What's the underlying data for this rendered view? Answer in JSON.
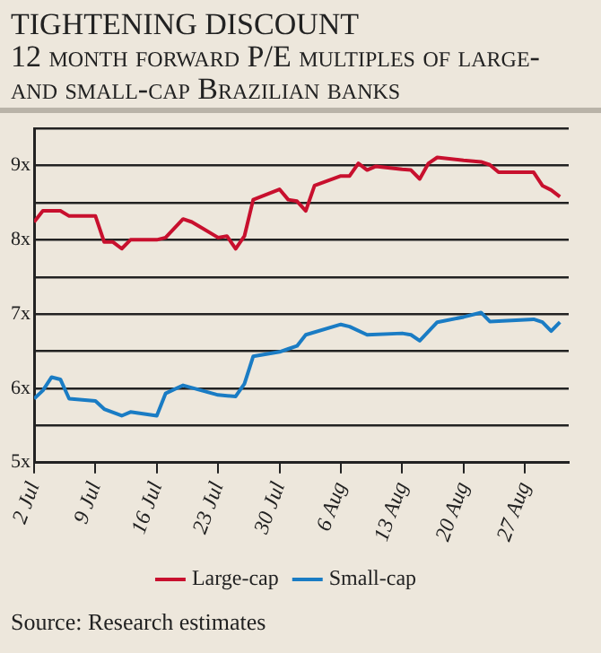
{
  "chart_data": {
    "type": "line",
    "title": "TIGHTENING DISCOUNT",
    "subtitle": "12 month forward P/E multiples of large- and small-cap Brazilian banks",
    "xlim": [
      "--07-02",
      "--09-01"
    ],
    "xticks": [
      {
        "value": "--07-02",
        "label": "2 Jul"
      },
      {
        "value": "--07-09",
        "label": "9 Jul"
      },
      {
        "value": "--07-16",
        "label": "16 Jul"
      },
      {
        "value": "--07-23",
        "label": "23 Jul"
      },
      {
        "value": "--07-30",
        "label": "30 Jul"
      },
      {
        "value": "--08-06",
        "label": "6 Aug"
      },
      {
        "value": "--08-13",
        "label": "13 Aug"
      },
      {
        "value": "--08-20",
        "label": "20 Aug"
      },
      {
        "value": "--08-27",
        "label": "27 Aug"
      }
    ],
    "ylim": [
      5,
      9.5
    ],
    "yticks": [
      {
        "value": 5,
        "label": "5x"
      },
      {
        "value": 5.5,
        "label": null
      },
      {
        "value": 6,
        "label": "6x"
      },
      {
        "value": 6.5,
        "label": null
      },
      {
        "value": 7,
        "label": "7x"
      },
      {
        "value": 7.5,
        "label": null
      },
      {
        "value": 8,
        "label": "8x"
      },
      {
        "value": 8.5,
        "label": null
      },
      {
        "value": 9,
        "label": "9x"
      },
      {
        "value": 9.5,
        "label": null
      }
    ],
    "grid": "y",
    "legend": "bottom",
    "marker": "none",
    "line_style": "solid",
    "series": [
      {
        "name": "Large-cap",
        "color": "#c8102e",
        "x": [
          "--07-02",
          "--07-03",
          "--07-05",
          "--07-06",
          "--07-09",
          "--07-10",
          "--07-11",
          "--07-12",
          "--07-13",
          "--07-16",
          "--07-17",
          "--07-19",
          "--07-20",
          "--07-23",
          "--07-24",
          "--07-25",
          "--07-26",
          "--07-27",
          "--07-30",
          "--07-31",
          "--08-01",
          "--08-02",
          "--08-03",
          "--08-06",
          "--08-07",
          "--08-08",
          "--08-09",
          "--08-10",
          "--08-13",
          "--08-14",
          "--08-15",
          "--08-16",
          "--08-17",
          "--08-20",
          "--08-22",
          "--08-23",
          "--08-24",
          "--08-28",
          "--08-29",
          "--08-30",
          "--08-31"
        ],
        "values": [
          8.24,
          8.39,
          8.39,
          8.32,
          8.32,
          7.97,
          7.97,
          7.88,
          8.0,
          8.0,
          8.03,
          8.28,
          8.24,
          8.03,
          8.05,
          7.88,
          8.05,
          8.54,
          8.68,
          8.54,
          8.52,
          8.39,
          8.73,
          8.86,
          8.86,
          9.03,
          8.94,
          8.99,
          8.95,
          8.94,
          8.82,
          9.03,
          9.11,
          9.07,
          9.05,
          9.01,
          8.91,
          8.91,
          8.73,
          8.67,
          8.58
        ]
      },
      {
        "name": "Small-cap",
        "color": "#1a7cc4",
        "x": [
          "--07-02",
          "--07-03",
          "--07-04",
          "--07-05",
          "--07-06",
          "--07-09",
          "--07-10",
          "--07-12",
          "--07-13",
          "--07-16",
          "--07-17",
          "--07-19",
          "--07-23",
          "--07-25",
          "--07-26",
          "--07-27",
          "--07-30",
          "--07-31",
          "--08-01",
          "--08-02",
          "--08-06",
          "--08-07",
          "--08-09",
          "--08-13",
          "--08-14",
          "--08-15",
          "--08-17",
          "--08-20",
          "--08-22",
          "--08-23",
          "--08-28",
          "--08-29",
          "--08-30",
          "--08-31"
        ],
        "values": [
          5.86,
          5.97,
          6.15,
          6.12,
          5.86,
          5.83,
          5.72,
          5.63,
          5.68,
          5.63,
          5.93,
          6.04,
          5.91,
          5.89,
          6.06,
          6.43,
          6.49,
          6.53,
          6.57,
          6.72,
          6.86,
          6.83,
          6.72,
          6.74,
          6.72,
          6.64,
          6.89,
          6.96,
          7.02,
          6.9,
          6.93,
          6.89,
          6.77,
          6.89
        ]
      }
    ],
    "annotations": [
      "Source: Research estimates"
    ]
  }
}
